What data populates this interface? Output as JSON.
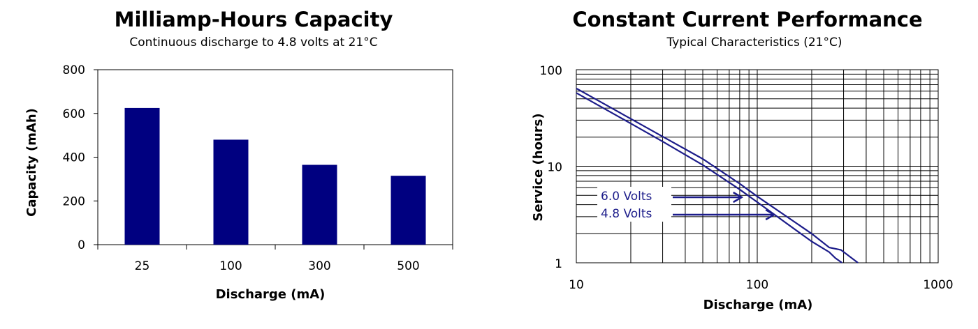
{
  "colors": {
    "bar": "#000080",
    "line": "#1c1c8a",
    "grid": "#000000"
  },
  "chart_data": [
    {
      "type": "bar",
      "title": "Milliamp-Hours Capacity",
      "subtitle": "Continuous discharge to 4.8 volts at 21°C",
      "xlabel": "Discharge (mA)",
      "ylabel": "Capacity (mAh)",
      "categories": [
        "25",
        "100",
        "300",
        "500"
      ],
      "values": [
        625,
        480,
        365,
        315
      ],
      "ylim": [
        0,
        800
      ],
      "yticks": [
        "0",
        "200",
        "400",
        "600",
        "800"
      ],
      "grid": false,
      "legend": "none"
    },
    {
      "type": "line",
      "title": "Constant Current Performance",
      "subtitle": "Typical Characteristics (21°C)",
      "xlabel": "Discharge (mA)",
      "ylabel": "Service (hours)",
      "xscale": "log",
      "yscale": "log",
      "xlim": [
        10,
        1000
      ],
      "ylim": [
        1,
        100
      ],
      "xticks": [
        "10",
        "100",
        "1000"
      ],
      "yticks": [
        "1",
        "10",
        "100"
      ],
      "grid": true,
      "series": [
        {
          "name": "6.0 Volts",
          "x": [
            10,
            20,
            30,
            50,
            80,
            100,
            200,
            250,
            270,
            294
          ],
          "y": [
            57.5,
            27.7,
            18,
            10.3,
            5.75,
            4.25,
            1.66,
            1.29,
            1.12,
            1.0
          ]
        },
        {
          "name": "4.8 Volts",
          "x": [
            10,
            20,
            30,
            50,
            80,
            100,
            200,
            250,
            290,
            360
          ],
          "y": [
            64,
            31,
            20.3,
            11.9,
            6.6,
            4.87,
            2.0,
            1.44,
            1.36,
            1.0
          ]
        }
      ],
      "annotations": [
        {
          "text": "6.0 Volts",
          "arrow_to": [
            82,
            5.6
          ]
        },
        {
          "text": "4.8 Volts",
          "arrow_to": [
            124,
            3.9
          ]
        }
      ]
    }
  ]
}
